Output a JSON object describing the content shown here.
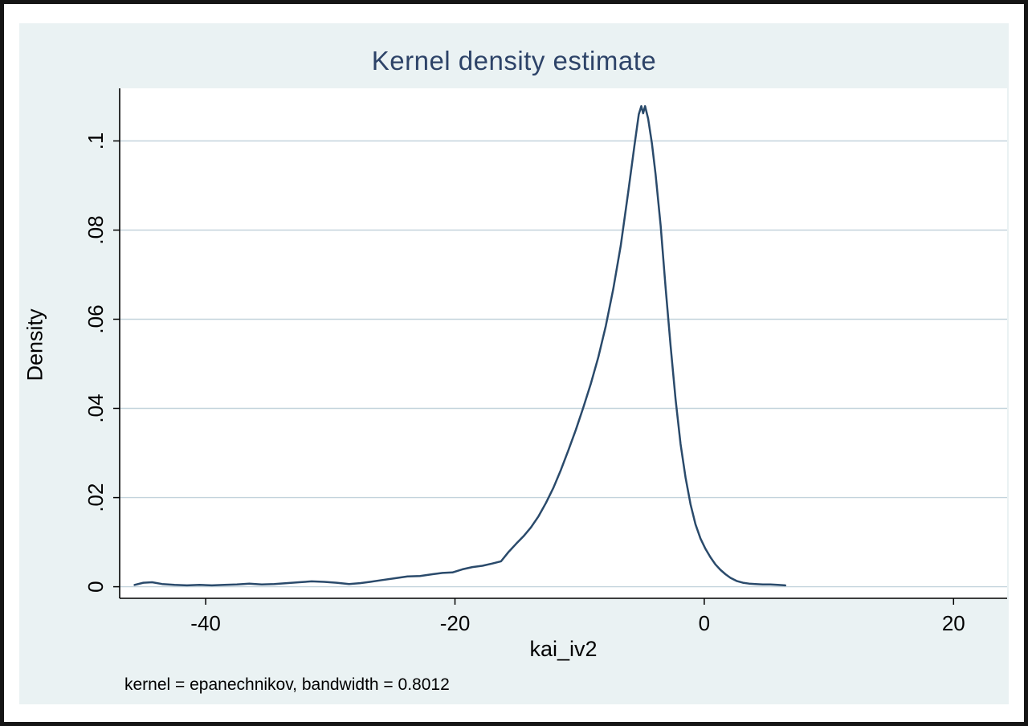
{
  "chart_data": {
    "type": "line",
    "title": "Kernel density estimate",
    "xlabel": "kai_iv2",
    "ylabel": "Density",
    "note": "kernel = epanechnikov, bandwidth = 0.8012",
    "grid": true,
    "legend_position": "none",
    "xlim": [
      -46.9,
      24.3
    ],
    "ylim": [
      -0.0026,
      0.1118
    ],
    "xticks": [
      {
        "value": -40,
        "label": "-40"
      },
      {
        "value": -20,
        "label": "-20"
      },
      {
        "value": 0,
        "label": "0"
      },
      {
        "value": 20,
        "label": "20"
      }
    ],
    "yticks": [
      {
        "value": 0,
        "label": "0"
      },
      {
        "value": 0.02,
        "label": ".02"
      },
      {
        "value": 0.04,
        "label": ".04"
      },
      {
        "value": 0.06,
        "label": ".06"
      },
      {
        "value": 0.08,
        "label": ".08"
      },
      {
        "value": 0.1,
        "label": ".1"
      }
    ],
    "series": [
      {
        "name": "Density",
        "points": [
          [
            -45.7,
            0.0004
          ],
          [
            -45.0,
            0.0009
          ],
          [
            -44.3,
            0.001
          ],
          [
            -43.5,
            0.0006
          ],
          [
            -42.5,
            0.0004
          ],
          [
            -41.5,
            0.0003
          ],
          [
            -40.5,
            0.0004
          ],
          [
            -39.5,
            0.0003
          ],
          [
            -38.5,
            0.0004
          ],
          [
            -37.5,
            0.0005
          ],
          [
            -36.5,
            0.0007
          ],
          [
            -35.5,
            0.0005
          ],
          [
            -34.5,
            0.0006
          ],
          [
            -33.5,
            0.0008
          ],
          [
            -32.5,
            0.001
          ],
          [
            -31.5,
            0.0012
          ],
          [
            -30.5,
            0.0011
          ],
          [
            -29.5,
            0.0009
          ],
          [
            -28.5,
            0.0006
          ],
          [
            -27.6,
            0.0008
          ],
          [
            -26.8,
            0.0011
          ],
          [
            -25.8,
            0.0015
          ],
          [
            -24.8,
            0.0019
          ],
          [
            -23.8,
            0.0023
          ],
          [
            -22.8,
            0.0024
          ],
          [
            -21.8,
            0.0028
          ],
          [
            -21.0,
            0.0031
          ],
          [
            -20.2,
            0.0032
          ],
          [
            -19.4,
            0.0039
          ],
          [
            -18.6,
            0.0044
          ],
          [
            -17.8,
            0.0047
          ],
          [
            -17.0,
            0.0052
          ],
          [
            -16.3,
            0.0057
          ],
          [
            -15.7,
            0.0078
          ],
          [
            -15.1,
            0.0096
          ],
          [
            -14.5,
            0.0113
          ],
          [
            -13.9,
            0.0133
          ],
          [
            -13.3,
            0.0158
          ],
          [
            -12.7,
            0.0188
          ],
          [
            -12.1,
            0.0222
          ],
          [
            -11.5,
            0.0262
          ],
          [
            -10.9,
            0.0306
          ],
          [
            -10.3,
            0.0352
          ],
          [
            -9.7,
            0.0402
          ],
          [
            -9.1,
            0.0455
          ],
          [
            -8.5,
            0.0515
          ],
          [
            -7.9,
            0.0585
          ],
          [
            -7.3,
            0.0668
          ],
          [
            -6.7,
            0.0765
          ],
          [
            -6.1,
            0.0885
          ],
          [
            -5.6,
            0.099
          ],
          [
            -5.25,
            0.106
          ],
          [
            -5.05,
            0.1078
          ],
          [
            -4.9,
            0.1062
          ],
          [
            -4.75,
            0.1078
          ],
          [
            -4.5,
            0.105
          ],
          [
            -4.2,
            0.0995
          ],
          [
            -3.9,
            0.0925
          ],
          [
            -3.5,
            0.081
          ],
          [
            -3.1,
            0.067
          ],
          [
            -2.7,
            0.054
          ],
          [
            -2.3,
            0.042
          ],
          [
            -1.9,
            0.032
          ],
          [
            -1.5,
            0.0245
          ],
          [
            -1.1,
            0.0185
          ],
          [
            -0.7,
            0.014
          ],
          [
            -0.3,
            0.0108
          ],
          [
            0.1,
            0.0085
          ],
          [
            0.5,
            0.0066
          ],
          [
            0.9,
            0.005
          ],
          [
            1.3,
            0.0038
          ],
          [
            1.7,
            0.0028
          ],
          [
            2.1,
            0.002
          ],
          [
            2.6,
            0.0013
          ],
          [
            3.1,
            0.0009
          ],
          [
            3.6,
            0.0007
          ],
          [
            4.1,
            0.0006
          ],
          [
            4.7,
            0.0005
          ],
          [
            5.3,
            0.0005
          ],
          [
            5.9,
            0.0004
          ],
          [
            6.5,
            0.0003
          ]
        ]
      }
    ],
    "colors": {
      "line": "#2a4a6b",
      "title": "#2d4368",
      "panel_bg": "#eaf2f3",
      "plot_bg": "#ffffff",
      "grid": "#c3d3dc",
      "axis": "#000000",
      "tick_text": "#000000"
    }
  }
}
